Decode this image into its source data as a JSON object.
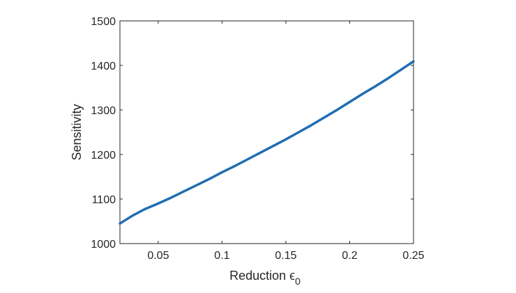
{
  "chart_data": {
    "type": "line",
    "title": "",
    "xlabel": "Reduction",
    "xlabel_symbol": "ϵ",
    "xlabel_subscript": "0",
    "ylabel": "Sensitivity",
    "xlim": [
      0.02,
      0.25
    ],
    "ylim": [
      1000,
      1500
    ],
    "grid": false,
    "legend": "none",
    "x_ticks": [
      0.05,
      0.1,
      0.15,
      0.2,
      0.25
    ],
    "x_tick_labels": [
      "0.05",
      "0.1",
      "0.15",
      "0.2",
      "0.25"
    ],
    "y_ticks": [
      1000,
      1100,
      1200,
      1300,
      1400,
      1500
    ],
    "y_tick_labels": [
      "1000",
      "1100",
      "1200",
      "1300",
      "1400",
      "1500"
    ],
    "series": [
      {
        "color": "#1f6db3",
        "x": [
          0.02,
          0.03,
          0.04,
          0.05,
          0.06,
          0.07,
          0.08,
          0.09,
          0.1,
          0.11,
          0.12,
          0.13,
          0.14,
          0.15,
          0.16,
          0.17,
          0.18,
          0.19,
          0.2,
          0.21,
          0.22,
          0.23,
          0.24,
          0.25
        ],
        "y": [
          1045,
          1063,
          1078,
          1090,
          1103,
          1117,
          1131,
          1145,
          1160,
          1174,
          1189,
          1204,
          1219,
          1234,
          1250,
          1266,
          1283,
          1300,
          1318,
          1336,
          1353,
          1371,
          1390,
          1409
        ]
      }
    ]
  }
}
